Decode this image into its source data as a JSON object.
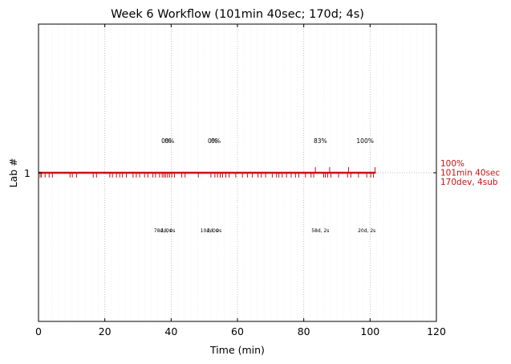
{
  "chart_data": {
    "type": "line",
    "title": "Week 6 Workflow (101min 40sec; 170d; 4s)",
    "xlabel": "Time (min)",
    "ylabel": "Lab #",
    "xlim": [
      0,
      120
    ],
    "x_ticks": [
      "0",
      "20",
      "40",
      "60",
      "80",
      "100",
      "120"
    ],
    "y_ticks": [
      "1"
    ],
    "grid": "dotted vertical lines every 20 min, faint lines every 2 min",
    "series": [
      {
        "y": 1,
        "color": "#cc1111",
        "span": [
          0,
          101.7
        ],
        "dev_events_min": [
          0.5,
          0.9,
          2.0,
          3.2,
          4.2,
          9.5,
          10.2,
          11.5,
          16.5,
          17.5,
          21.5,
          22.3,
          23.5,
          24.5,
          25.3,
          26.5,
          28.5,
          29.5,
          30.5,
          32.0,
          33.0,
          34.5,
          35.3,
          36.5,
          37.3,
          37.8,
          38.3,
          38.9,
          39.5,
          40.2,
          41.0,
          43.2,
          44.2,
          48.2,
          52.0,
          53.2,
          54.0,
          54.8,
          55.5,
          56.5,
          57.5,
          59.5,
          61.5,
          63.0,
          64.5,
          66.2,
          67.2,
          68.5,
          70.5,
          71.8,
          72.5,
          73.5,
          74.8,
          76.2,
          77.5,
          78.5,
          80.5,
          82.2,
          83.0,
          86.0,
          86.5,
          87.2,
          88.2,
          90.5,
          93.2,
          94.2,
          96.5,
          99.0,
          100.2,
          101.0
        ],
        "sub_events_min": [
          83.5,
          87.8,
          93.5,
          101.5
        ]
      }
    ],
    "annotations_above": [
      {
        "x": 38.5,
        "text": "0%"
      },
      {
        "x": 39.5,
        "text": "0%"
      },
      {
        "x": 52.5,
        "text": "0%"
      },
      {
        "x": 53.5,
        "text": "0%"
      },
      {
        "x": 85.0,
        "text": "83%"
      },
      {
        "x": 98.5,
        "text": "100%"
      }
    ],
    "annotations_below": [
      {
        "x": 37.5,
        "text": "78d, 0s"
      },
      {
        "x": 39.0,
        "text": "2d, 0s"
      },
      {
        "x": 51.5,
        "text": "10d, 0s"
      },
      {
        "x": 53.0,
        "text": "2d, 0s"
      },
      {
        "x": 85.0,
        "text": "58d, 2s"
      },
      {
        "x": 99.0,
        "text": "20d, 2s"
      }
    ],
    "end_label": [
      "100%",
      "101min 40sec",
      "170dev, 4sub"
    ]
  }
}
